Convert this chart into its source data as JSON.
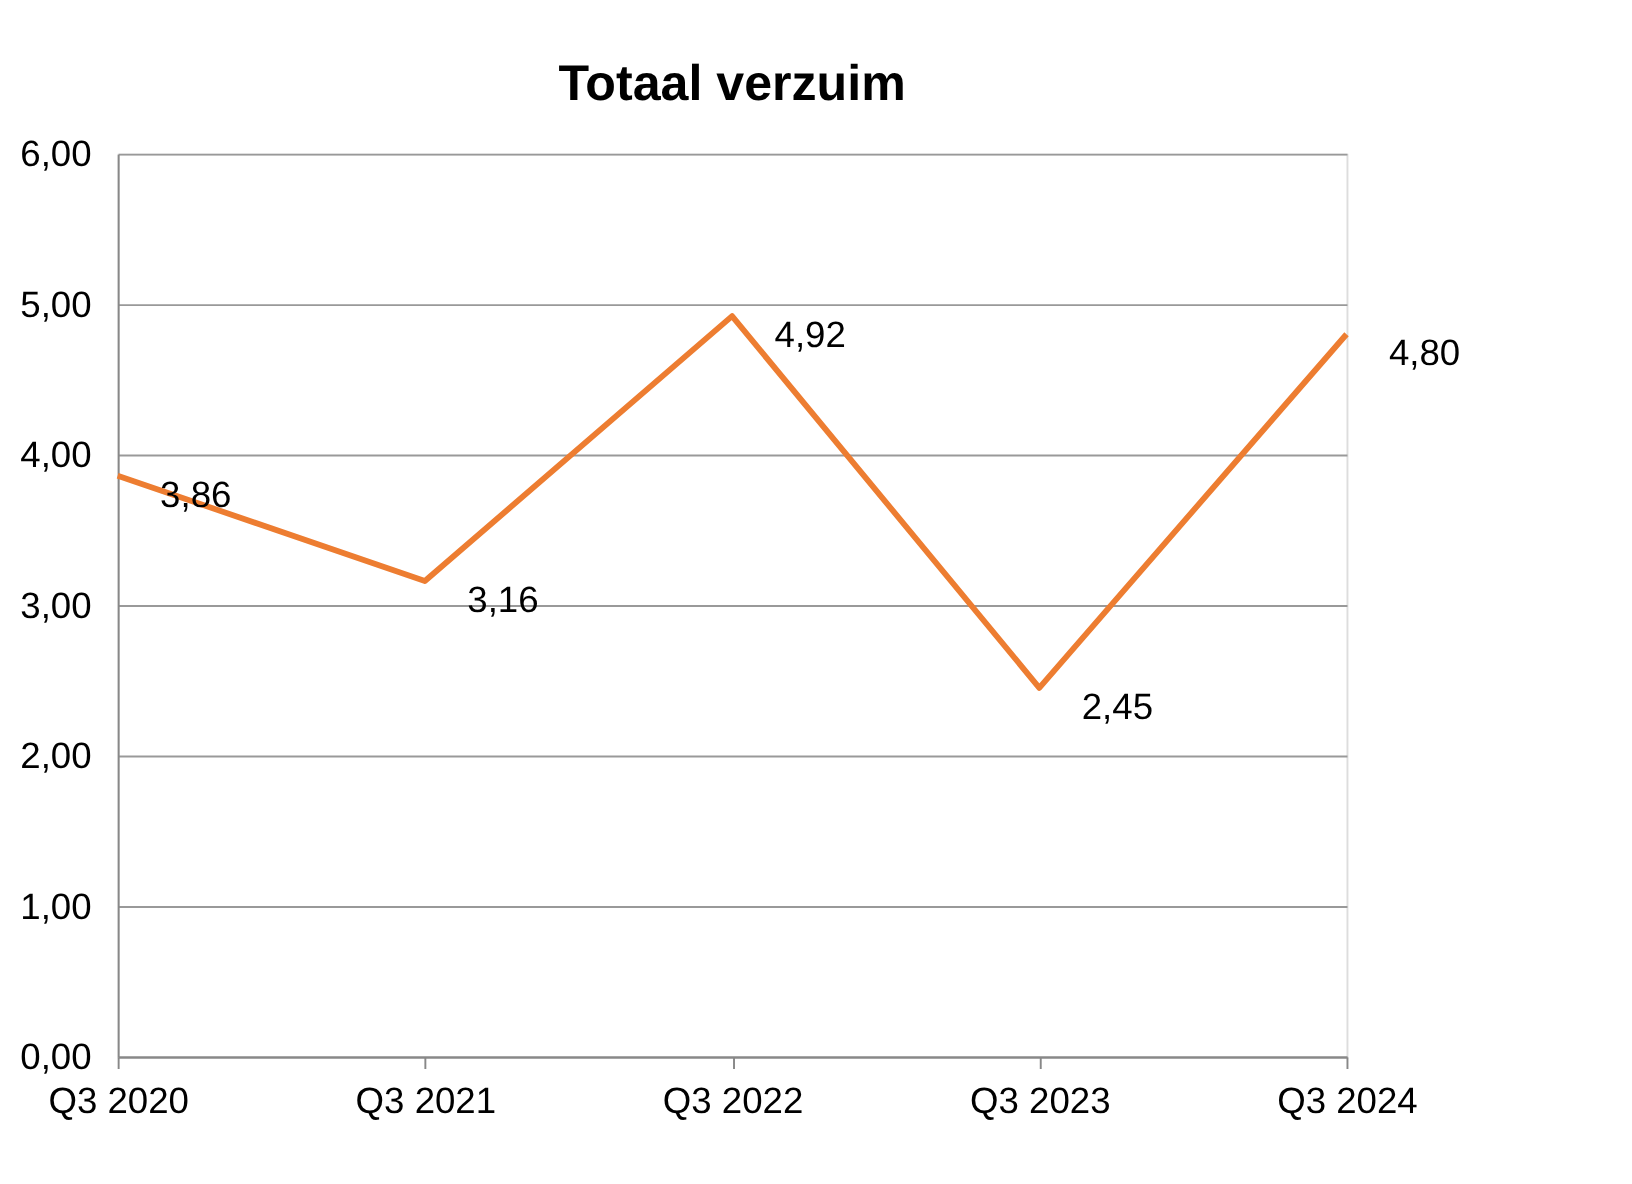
{
  "chart_data": {
    "type": "line",
    "title": "Totaal verzuim",
    "categories": [
      "Q3 2020",
      "Q3 2021",
      "Q3 2022",
      "Q3 2023",
      "Q3 2024"
    ],
    "series": [
      {
        "color": "#ed7d31",
        "values": [
          3.86,
          3.16,
          4.92,
          2.45,
          4.8
        ],
        "value_labels": [
          "3,86",
          "3,16",
          "4,92",
          "2,45",
          "4,80"
        ]
      }
    ],
    "ylim": [
      0,
      6
    ],
    "yticks": [
      {
        "value": 0,
        "label": "0,00"
      },
      {
        "value": 1,
        "label": "1,00"
      },
      {
        "value": 2,
        "label": "2,00"
      },
      {
        "value": 3,
        "label": "3,00"
      },
      {
        "value": 4,
        "label": "4,00"
      },
      {
        "value": 5,
        "label": "5,00"
      },
      {
        "value": 6,
        "label": "6,00"
      }
    ],
    "grid": "y",
    "marker": "none",
    "line_style": "solid"
  }
}
